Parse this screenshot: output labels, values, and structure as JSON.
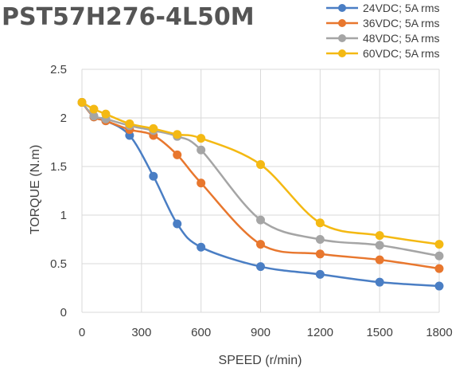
{
  "chart_data": {
    "type": "line",
    "title": "PST57H276-4L50M",
    "xlabel": "SPEED (r/min)",
    "ylabel": "TORQUE (N.m)",
    "xlim": [
      0,
      1800
    ],
    "ylim": [
      0,
      2.5
    ],
    "x_ticks": [
      "0",
      "300",
      "600",
      "900",
      "1200",
      "1500",
      "1800"
    ],
    "y_ticks": [
      "0",
      "0.5",
      "1",
      "1.5",
      "2",
      "2.5"
    ],
    "grid": true,
    "legend_position": "top-right",
    "series": [
      {
        "name": "24VDC; 5A rms",
        "color": "#4a7ec4",
        "x": [
          0,
          60,
          120,
          240,
          360,
          480,
          600,
          900,
          1200,
          1500,
          1800
        ],
        "y": [
          2.16,
          2.01,
          1.97,
          1.82,
          1.4,
          0.91,
          0.67,
          0.47,
          0.39,
          0.31,
          0.27
        ]
      },
      {
        "name": "36VDC; 5A rms",
        "color": "#e8772e",
        "x": [
          0,
          60,
          120,
          240,
          360,
          480,
          600,
          900,
          1200,
          1500,
          1800
        ],
        "y": [
          2.16,
          2.01,
          1.97,
          1.88,
          1.82,
          1.62,
          1.33,
          0.7,
          0.6,
          0.54,
          0.45
        ]
      },
      {
        "name": "48VDC; 5A rms",
        "color": "#a5a5a5",
        "x": [
          0,
          60,
          120,
          240,
          360,
          480,
          600,
          900,
          1200,
          1500,
          1800
        ],
        "y": [
          2.16,
          2.02,
          1.99,
          1.92,
          1.87,
          1.81,
          1.67,
          0.95,
          0.75,
          0.69,
          0.58
        ]
      },
      {
        "name": "60VDC; 5A rms",
        "color": "#f4b913",
        "x": [
          0,
          60,
          120,
          240,
          360,
          480,
          600,
          900,
          1200,
          1500,
          1800
        ],
        "y": [
          2.16,
          2.09,
          2.04,
          1.94,
          1.89,
          1.83,
          1.79,
          1.52,
          0.92,
          0.79,
          0.7
        ]
      }
    ]
  }
}
